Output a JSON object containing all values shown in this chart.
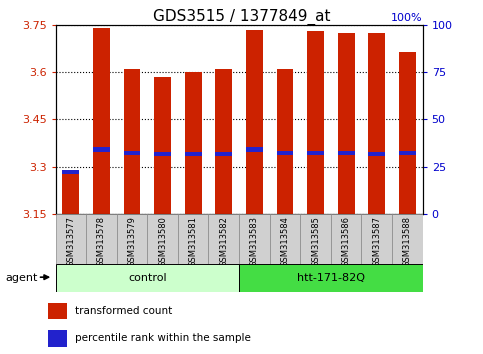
{
  "title": "GDS3515 / 1377849_at",
  "samples": [
    "GSM313577",
    "GSM313578",
    "GSM313579",
    "GSM313580",
    "GSM313581",
    "GSM313582",
    "GSM313583",
    "GSM313584",
    "GSM313585",
    "GSM313586",
    "GSM313587",
    "GSM313588"
  ],
  "bar_values": [
    3.28,
    3.74,
    3.61,
    3.585,
    3.6,
    3.61,
    3.735,
    3.61,
    3.73,
    3.725,
    3.725,
    3.665
  ],
  "blue_values": [
    3.285,
    3.355,
    3.345,
    3.34,
    3.34,
    3.34,
    3.355,
    3.345,
    3.345,
    3.345,
    3.34,
    3.345
  ],
  "y_min": 3.15,
  "y_max": 3.75,
  "y_ticks_left": [
    3.15,
    3.3,
    3.45,
    3.6,
    3.75
  ],
  "y_ticks_right": [
    0,
    25,
    50,
    75,
    100
  ],
  "bar_color": "#cc2200",
  "blue_color": "#2222cc",
  "bar_bottom": 3.15,
  "groups": [
    {
      "label": "control",
      "start": 0,
      "end": 6,
      "color": "#ccffcc"
    },
    {
      "label": "htt-171-82Q",
      "start": 6,
      "end": 12,
      "color": "#44dd44"
    }
  ],
  "agent_label": "agent",
  "legend_items": [
    {
      "label": "transformed count",
      "color": "#cc2200"
    },
    {
      "label": "percentile rank within the sample",
      "color": "#2222cc"
    }
  ],
  "left_axis_color": "#cc2200",
  "right_axis_color": "#0000cc",
  "title_fontsize": 11,
  "tick_fontsize": 8,
  "label_fontsize": 7,
  "bar_width": 0.55
}
